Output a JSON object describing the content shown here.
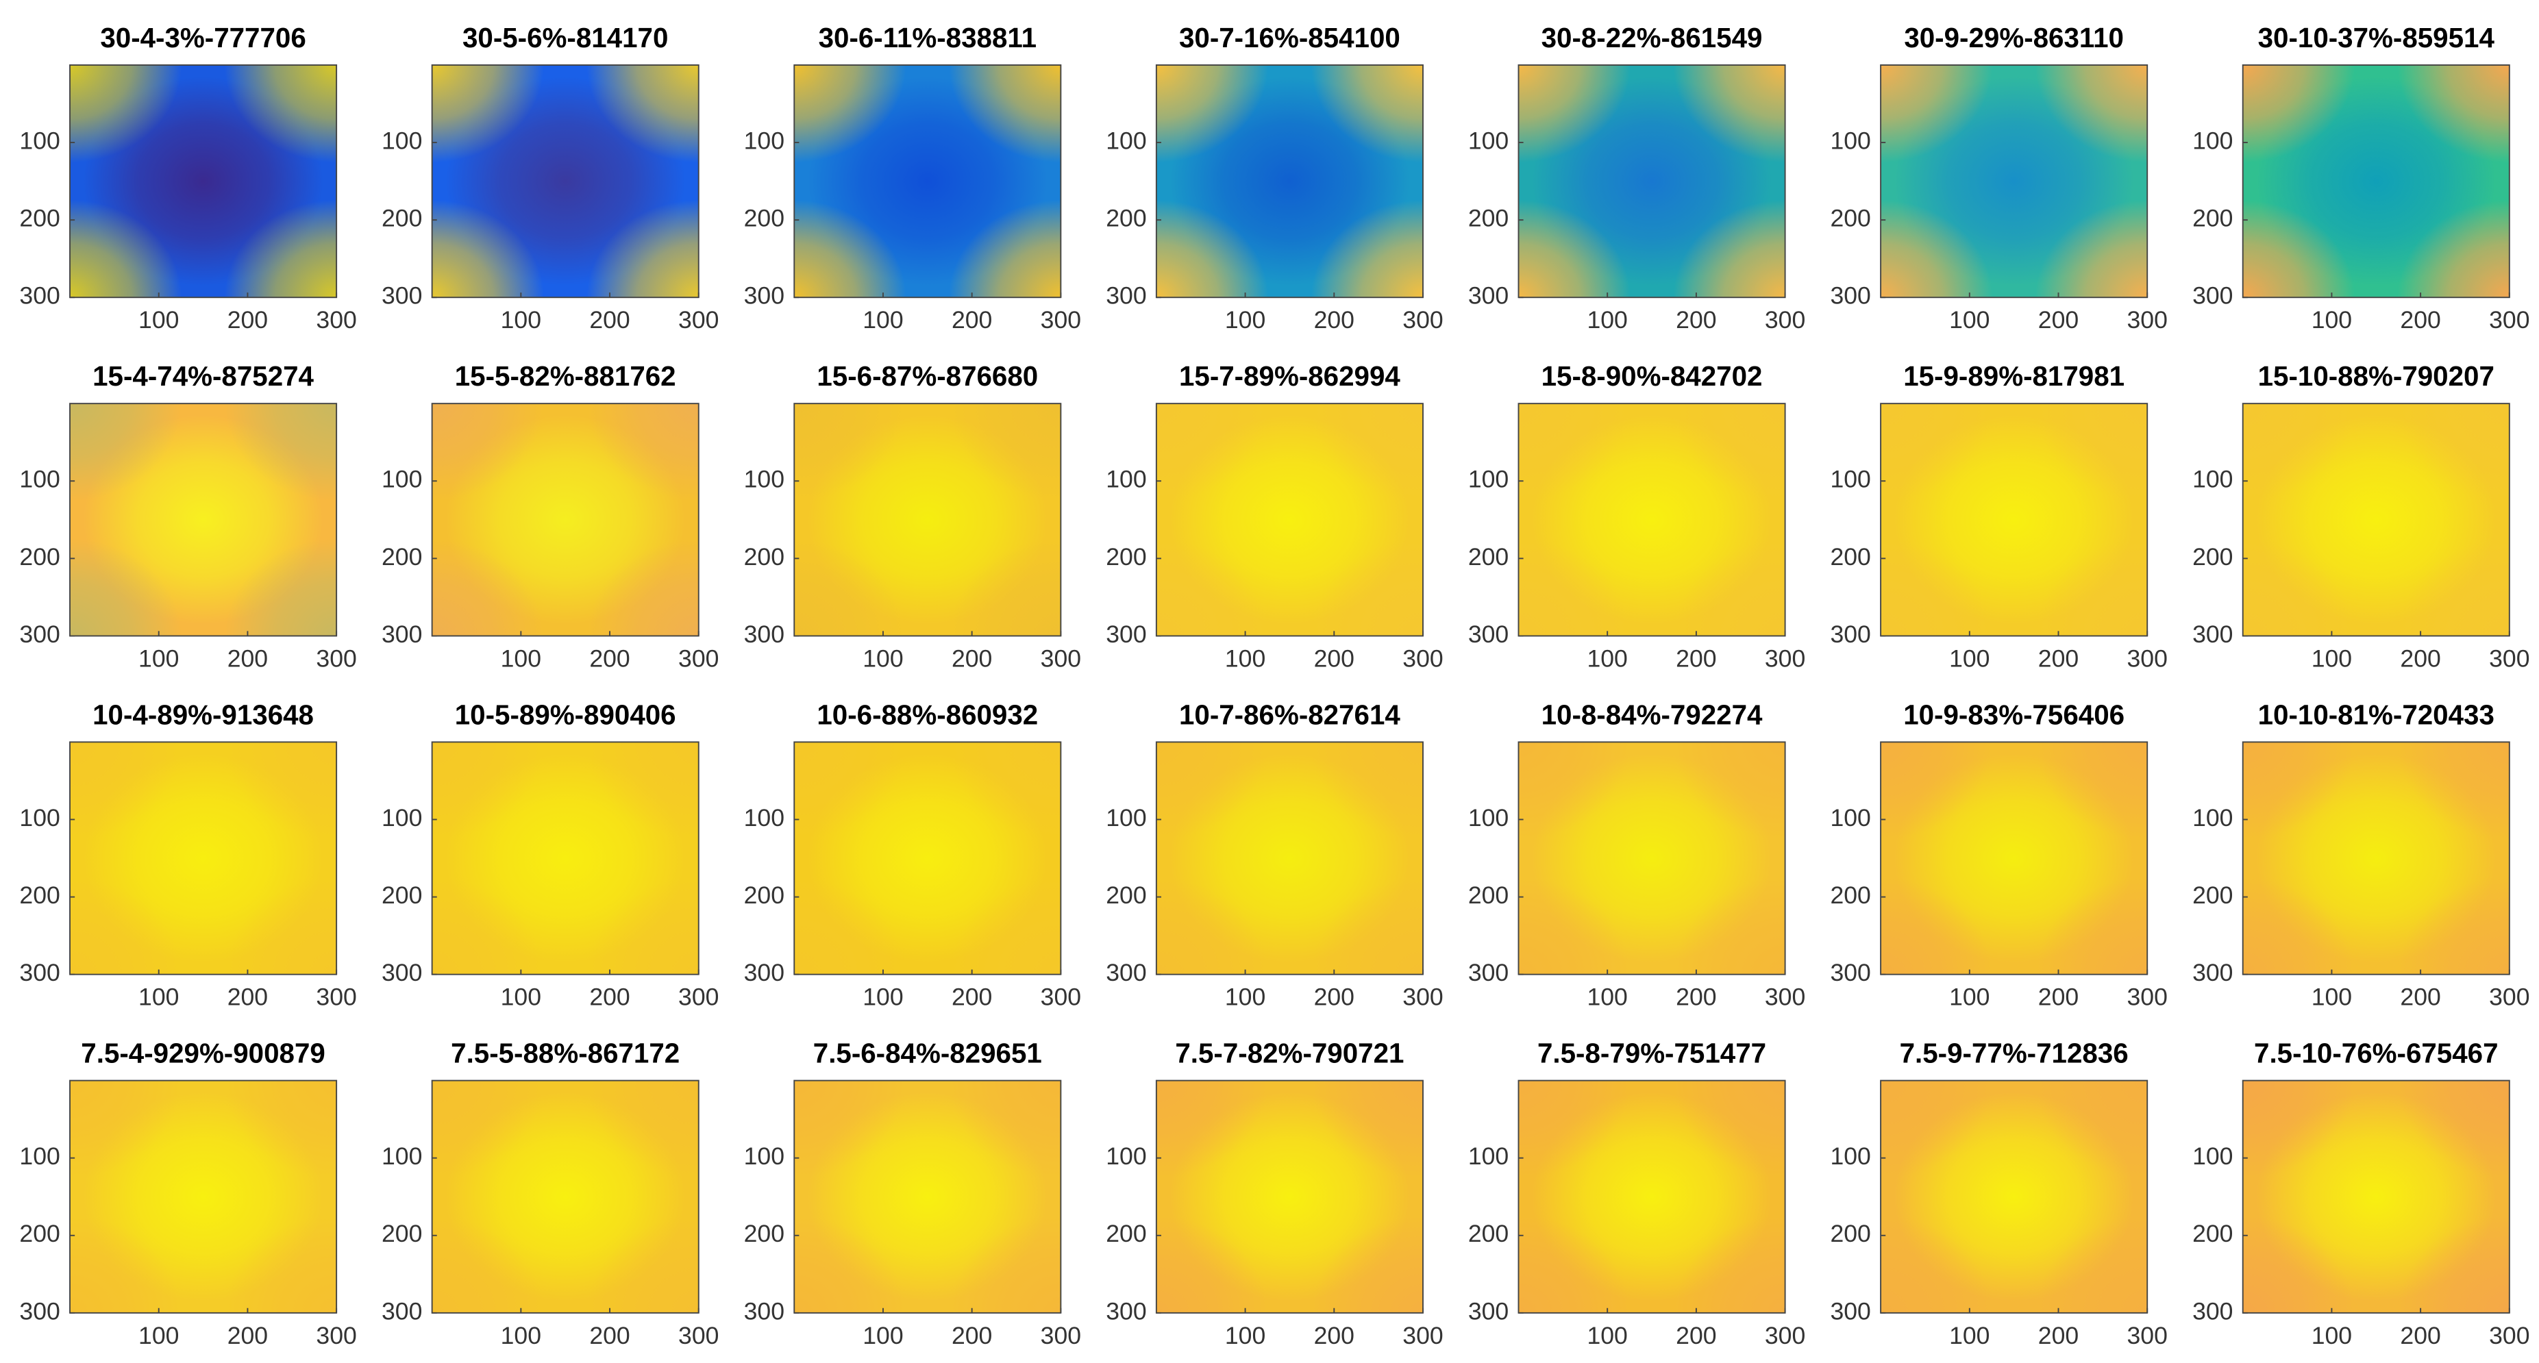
{
  "chart_data": [
    {
      "type": "heatmap",
      "title": "30-4-3%-777706",
      "colors": [
        "#3a2a90",
        "#1a5ae0",
        "#d8c828"
      ],
      "xlim": [
        0,
        300
      ],
      "ylim": [
        0,
        300
      ],
      "y_reversed": true,
      "xticks": [
        100,
        200,
        300
      ],
      "yticks": [
        100,
        200,
        300
      ]
    },
    {
      "type": "heatmap",
      "title": "30-5-6%-814170",
      "colors": [
        "#3a3aa0",
        "#1a60e8",
        "#e8c830"
      ],
      "xlim": [
        0,
        300
      ],
      "ylim": [
        0,
        300
      ],
      "y_reversed": true,
      "xticks": [
        100,
        200,
        300
      ],
      "yticks": [
        100,
        200,
        300
      ]
    },
    {
      "type": "heatmap",
      "title": "30-6-11%-838811",
      "colors": [
        "#1050d8",
        "#1a80d8",
        "#f0c030"
      ],
      "xlim": [
        0,
        300
      ],
      "ylim": [
        0,
        300
      ],
      "y_reversed": true,
      "xticks": [
        100,
        200,
        300
      ],
      "yticks": [
        100,
        200,
        300
      ]
    },
    {
      "type": "heatmap",
      "title": "30-7-16%-854100",
      "colors": [
        "#1060d0",
        "#1a98c8",
        "#f5c040"
      ],
      "xlim": [
        0,
        300
      ],
      "ylim": [
        0,
        300
      ],
      "y_reversed": true,
      "xticks": [
        100,
        200,
        300
      ],
      "yticks": [
        100,
        200,
        300
      ]
    },
    {
      "type": "heatmap",
      "title": "30-8-22%-861549",
      "colors": [
        "#1878d0",
        "#20a8b0",
        "#f5b848"
      ],
      "xlim": [
        0,
        300
      ],
      "ylim": [
        0,
        300
      ],
      "y_reversed": true,
      "xticks": [
        100,
        200,
        300
      ],
      "yticks": [
        100,
        200,
        300
      ]
    },
    {
      "type": "heatmap",
      "title": "30-9-29%-863110",
      "colors": [
        "#1890c8",
        "#30b8a0",
        "#f5b050"
      ],
      "xlim": [
        0,
        300
      ],
      "ylim": [
        0,
        300
      ],
      "y_reversed": true,
      "xticks": [
        100,
        200,
        300
      ],
      "yticks": [
        100,
        200,
        300
      ]
    },
    {
      "type": "heatmap",
      "title": "30-10-37%-859514",
      "colors": [
        "#10a0b8",
        "#30c090",
        "#f5a850"
      ],
      "xlim": [
        0,
        300
      ],
      "ylim": [
        0,
        300
      ],
      "y_reversed": true,
      "xticks": [
        100,
        200,
        300
      ],
      "yticks": [
        100,
        200,
        300
      ]
    },
    {
      "type": "heatmap",
      "title": "15-4-74%-875274",
      "colors": [
        "#f8f020",
        "#f8b840",
        "#c8b860"
      ],
      "xlim": [
        0,
        300
      ],
      "ylim": [
        0,
        300
      ],
      "y_reversed": true,
      "xticks": [
        100,
        200,
        300
      ],
      "yticks": [
        100,
        200,
        300
      ]
    },
    {
      "type": "heatmap",
      "title": "15-5-82%-881762",
      "colors": [
        "#f5ee20",
        "#f5c030",
        "#f0b050"
      ],
      "xlim": [
        0,
        300
      ],
      "ylim": [
        0,
        300
      ],
      "y_reversed": true,
      "xticks": [
        100,
        200,
        300
      ],
      "yticks": [
        100,
        200,
        300
      ]
    },
    {
      "type": "heatmap",
      "title": "15-6-87%-876680",
      "colors": [
        "#f5ee10",
        "#f5c828",
        "#f0c030"
      ],
      "xlim": [
        0,
        300
      ],
      "ylim": [
        0,
        300
      ],
      "y_reversed": true,
      "xticks": [
        100,
        200,
        300
      ],
      "yticks": [
        100,
        200,
        300
      ]
    },
    {
      "type": "heatmap",
      "title": "15-7-89%-862994",
      "colors": [
        "#f8f010",
        "#f5cc28",
        "#f5c830"
      ],
      "xlim": [
        0,
        300
      ],
      "ylim": [
        0,
        300
      ],
      "y_reversed": true,
      "xticks": [
        100,
        200,
        300
      ],
      "yticks": [
        100,
        200,
        300
      ]
    },
    {
      "type": "heatmap",
      "title": "15-8-90%-842702",
      "colors": [
        "#f8f010",
        "#f5cc28",
        "#f5c830"
      ],
      "xlim": [
        0,
        300
      ],
      "ylim": [
        0,
        300
      ],
      "y_reversed": true,
      "xticks": [
        100,
        200,
        300
      ],
      "yticks": [
        100,
        200,
        300
      ]
    },
    {
      "type": "heatmap",
      "title": "15-9-89%-817981",
      "colors": [
        "#f8f010",
        "#f5cc28",
        "#f5c830"
      ],
      "xlim": [
        0,
        300
      ],
      "ylim": [
        0,
        300
      ],
      "y_reversed": true,
      "xticks": [
        100,
        200,
        300
      ],
      "yticks": [
        100,
        200,
        300
      ]
    },
    {
      "type": "heatmap",
      "title": "15-10-88%-790207",
      "colors": [
        "#f8f010",
        "#f5cc28",
        "#f5c830"
      ],
      "xlim": [
        0,
        300
      ],
      "ylim": [
        0,
        300
      ],
      "y_reversed": true,
      "xticks": [
        100,
        200,
        300
      ],
      "yticks": [
        100,
        200,
        300
      ]
    },
    {
      "type": "heatmap",
      "title": "10-4-89%-913648",
      "colors": [
        "#f8ee10",
        "#f5d020",
        "#f5c828"
      ],
      "xlim": [
        0,
        300
      ],
      "ylim": [
        0,
        300
      ],
      "y_reversed": true,
      "xticks": [
        100,
        200,
        300
      ],
      "yticks": [
        100,
        200,
        300
      ]
    },
    {
      "type": "heatmap",
      "title": "10-5-89%-890406",
      "colors": [
        "#f8ee10",
        "#f5d020",
        "#f5c828"
      ],
      "xlim": [
        0,
        300
      ],
      "ylim": [
        0,
        300
      ],
      "y_reversed": true,
      "xticks": [
        100,
        200,
        300
      ],
      "yticks": [
        100,
        200,
        300
      ]
    },
    {
      "type": "heatmap",
      "title": "10-6-88%-860932",
      "colors": [
        "#f8ee10",
        "#f5cc20",
        "#f5c828"
      ],
      "xlim": [
        0,
        300
      ],
      "ylim": [
        0,
        300
      ],
      "y_reversed": true,
      "xticks": [
        100,
        200,
        300
      ],
      "yticks": [
        100,
        200,
        300
      ]
    },
    {
      "type": "heatmap",
      "title": "10-7-86%-827614",
      "colors": [
        "#f5ee10",
        "#f5c828",
        "#f5c030"
      ],
      "xlim": [
        0,
        300
      ],
      "ylim": [
        0,
        300
      ],
      "y_reversed": true,
      "xticks": [
        100,
        200,
        300
      ],
      "yticks": [
        100,
        200,
        300
      ]
    },
    {
      "type": "heatmap",
      "title": "10-8-84%-792274",
      "colors": [
        "#f5ee10",
        "#f5c430",
        "#f5b838"
      ],
      "xlim": [
        0,
        300
      ],
      "ylim": [
        0,
        300
      ],
      "y_reversed": true,
      "xticks": [
        100,
        200,
        300
      ],
      "yticks": [
        100,
        200,
        300
      ]
    },
    {
      "type": "heatmap",
      "title": "10-9-83%-756406",
      "colors": [
        "#f5ee10",
        "#f5c030",
        "#f5b040"
      ],
      "xlim": [
        0,
        300
      ],
      "ylim": [
        0,
        300
      ],
      "y_reversed": true,
      "xticks": [
        100,
        200,
        300
      ],
      "yticks": [
        100,
        200,
        300
      ]
    },
    {
      "type": "heatmap",
      "title": "10-10-81%-720433",
      "colors": [
        "#f5ee10",
        "#f5c030",
        "#f5b040"
      ],
      "xlim": [
        0,
        300
      ],
      "ylim": [
        0,
        300
      ],
      "y_reversed": true,
      "xticks": [
        100,
        200,
        300
      ],
      "yticks": [
        100,
        200,
        300
      ]
    },
    {
      "type": "heatmap",
      "title": "7.5-4-929%-900879",
      "colors": [
        "#f8f010",
        "#f5cc28",
        "#f5c030"
      ],
      "xlim": [
        0,
        300
      ],
      "ylim": [
        0,
        300
      ],
      "y_reversed": true,
      "xticks": [
        100,
        200,
        300
      ],
      "yticks": [
        100,
        200,
        300
      ]
    },
    {
      "type": "heatmap",
      "title": "7.5-5-88%-867172",
      "colors": [
        "#f8f010",
        "#f5c828",
        "#f5c030"
      ],
      "xlim": [
        0,
        300
      ],
      "ylim": [
        0,
        300
      ],
      "y_reversed": true,
      "xticks": [
        100,
        200,
        300
      ],
      "yticks": [
        100,
        200,
        300
      ]
    },
    {
      "type": "heatmap",
      "title": "7.5-6-84%-829651",
      "colors": [
        "#f8f010",
        "#f5c430",
        "#f5b838"
      ],
      "xlim": [
        0,
        300
      ],
      "ylim": [
        0,
        300
      ],
      "y_reversed": true,
      "xticks": [
        100,
        200,
        300
      ],
      "yticks": [
        100,
        200,
        300
      ]
    },
    {
      "type": "heatmap",
      "title": "7.5-7-82%-790721",
      "colors": [
        "#f8f010",
        "#f5c030",
        "#f5b040"
      ],
      "xlim": [
        0,
        300
      ],
      "ylim": [
        0,
        300
      ],
      "y_reversed": true,
      "xticks": [
        100,
        200,
        300
      ],
      "yticks": [
        100,
        200,
        300
      ]
    },
    {
      "type": "heatmap",
      "title": "7.5-8-79%-751477",
      "colors": [
        "#f8f010",
        "#f5bc30",
        "#f5b040"
      ],
      "xlim": [
        0,
        300
      ],
      "ylim": [
        0,
        300
      ],
      "y_reversed": true,
      "xticks": [
        100,
        200,
        300
      ],
      "yticks": [
        100,
        200,
        300
      ]
    },
    {
      "type": "heatmap",
      "title": "7.5-9-77%-712836",
      "colors": [
        "#f8f010",
        "#f5b838",
        "#f5b040"
      ],
      "xlim": [
        0,
        300
      ],
      "ylim": [
        0,
        300
      ],
      "y_reversed": true,
      "xticks": [
        100,
        200,
        300
      ],
      "yticks": [
        100,
        200,
        300
      ]
    },
    {
      "type": "heatmap",
      "title": "7.5-10-76%-675467",
      "colors": [
        "#f8f010",
        "#f5b838",
        "#f5a848"
      ],
      "xlim": [
        0,
        300
      ],
      "ylim": [
        0,
        300
      ],
      "y_reversed": true,
      "xticks": [
        100,
        200,
        300
      ],
      "yticks": [
        100,
        200,
        300
      ]
    }
  ]
}
